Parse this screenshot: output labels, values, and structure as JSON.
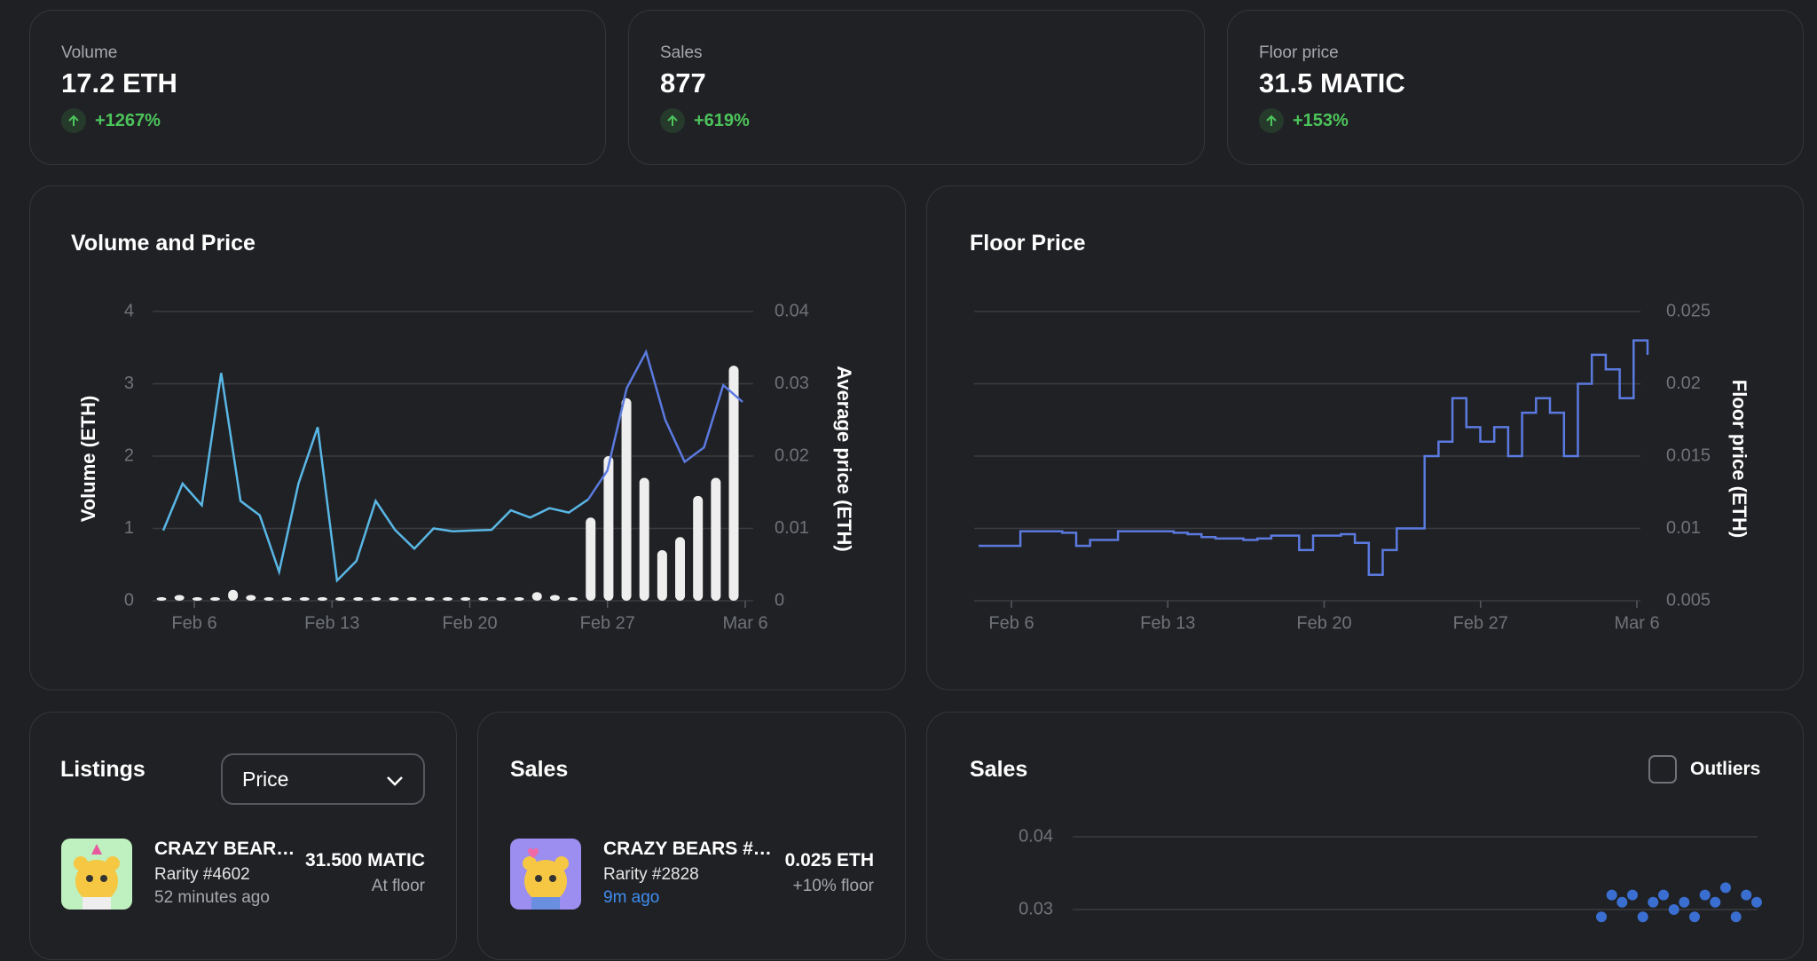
{
  "stats": [
    {
      "label": "Volume",
      "value": "17.2 ETH",
      "change": "+1267%"
    },
    {
      "label": "Sales",
      "value": "877",
      "change": "+619%"
    },
    {
      "label": "Floor price",
      "value": "31.5 MATIC",
      "change": "+153%"
    }
  ],
  "colors": {
    "accent_line": "#5b7ae0",
    "light_line": "#59b7e6",
    "positive": "#4cc45b",
    "bars": "#eeeeee",
    "scatter": "#3a6fd1"
  },
  "volume_price": {
    "title": "Volume and Price",
    "ylabel_left": "Volume (ETH)",
    "ylabel_right": "Average price (ETH)",
    "left_ticks": [
      "0",
      "1",
      "2",
      "3",
      "4"
    ],
    "right_ticks": [
      "0",
      "0.01",
      "0.02",
      "0.03",
      "0.04"
    ],
    "x_ticks": [
      "Feb 6",
      "Feb 13",
      "Feb 20",
      "Feb 27",
      "Mar 6"
    ]
  },
  "floor_price": {
    "title": "Floor Price",
    "ylabel_right": "Floor price (ETH)",
    "right_ticks": [
      "0.005",
      "0.01",
      "0.015",
      "0.02",
      "0.025"
    ],
    "x_ticks": [
      "Feb 6",
      "Feb 13",
      "Feb 20",
      "Feb 27",
      "Mar 6"
    ]
  },
  "listings": {
    "title": "Listings",
    "sort_value": "Price",
    "items": [
      {
        "name": "CRAZY BEAR…",
        "rarity": "Rarity #4602",
        "time": "52 minutes ago",
        "price": "31.500 MATIC",
        "sub": "At floor"
      }
    ]
  },
  "sales_list": {
    "title": "Sales",
    "items": [
      {
        "name": "CRAZY BEARS #…",
        "rarity": "Rarity #2828",
        "time": "9m ago",
        "price": "0.025 ETH",
        "sub": "+10% floor"
      }
    ]
  },
  "sales_scatter": {
    "title": "Sales",
    "outliers_label": "Outliers",
    "y_ticks": [
      "0.04",
      "0.03"
    ]
  },
  "chart_data": [
    {
      "type": "bar+line",
      "title": "Volume and Price",
      "x_labels": [
        "Feb 6",
        "Feb 13",
        "Feb 20",
        "Feb 27",
        "Mar 6"
      ],
      "ylabel": "Volume (ETH)",
      "ylabel_right": "Average price (ETH)",
      "ylim": [
        0,
        4
      ],
      "ylim_right": [
        0,
        0.04
      ],
      "series": [
        {
          "name": "Volume (ETH)",
          "type": "bar",
          "values": [
            0.02,
            0.08,
            0.02,
            0.02,
            0.15,
            0.08,
            0.02,
            0.02,
            0.02,
            0.02,
            0.04,
            0.02,
            0.02,
            0.02,
            0.04,
            0.04,
            0.04,
            0.04,
            0.02,
            0.02,
            0.02,
            0.12,
            0.08,
            0.02,
            1.15,
            2.0,
            2.8,
            1.7,
            0.7,
            0.88,
            1.45,
            1.7,
            3.25
          ]
        },
        {
          "name": "Average price (ETH)",
          "type": "line",
          "values": [
            0.0097,
            0.0162,
            0.0132,
            0.0315,
            0.0138,
            0.0118,
            0.004,
            0.0162,
            0.024,
            0.0028,
            0.0055,
            0.0138,
            0.0098,
            0.0072,
            0.01,
            0.0096,
            0.0097,
            0.0098,
            0.0125,
            0.0115,
            0.0128,
            0.0122,
            0.014,
            0.018,
            0.0294,
            0.0344,
            0.025,
            0.0192,
            0.0212,
            0.0298,
            0.0275
          ]
        }
      ]
    },
    {
      "type": "line",
      "title": "Floor Price",
      "x_labels": [
        "Feb 6",
        "Feb 13",
        "Feb 20",
        "Feb 27",
        "Mar 6"
      ],
      "ylabel": "Floor price (ETH)",
      "ylim": [
        0.005,
        0.025
      ],
      "series": [
        {
          "name": "Floor price (ETH)",
          "values": [
            0.0088,
            0.0088,
            0.0088,
            0.0098,
            0.0098,
            0.0098,
            0.0097,
            0.0088,
            0.0092,
            0.0092,
            0.0098,
            0.0098,
            0.0098,
            0.0098,
            0.0097,
            0.0096,
            0.0094,
            0.0093,
            0.0093,
            0.0092,
            0.0093,
            0.0095,
            0.0095,
            0.0085,
            0.0095,
            0.0095,
            0.0096,
            0.009,
            0.0068,
            0.0085,
            0.01,
            0.01,
            0.015,
            0.016,
            0.019,
            0.017,
            0.016,
            0.017,
            0.015,
            0.018,
            0.019,
            0.018,
            0.015,
            0.02,
            0.022,
            0.021,
            0.019,
            0.023,
            0.022
          ]
        }
      ]
    },
    {
      "type": "scatter",
      "title": "Sales",
      "y_ticks": [
        "0.04",
        "0.03"
      ],
      "series": [
        {
          "name": "Sales (ETH)",
          "values": [
            0.029,
            0.032,
            0.031,
            0.032,
            0.029,
            0.031,
            0.032,
            0.03,
            0.031,
            0.029,
            0.032,
            0.031,
            0.033,
            0.029,
            0.032,
            0.031
          ]
        }
      ]
    }
  ]
}
